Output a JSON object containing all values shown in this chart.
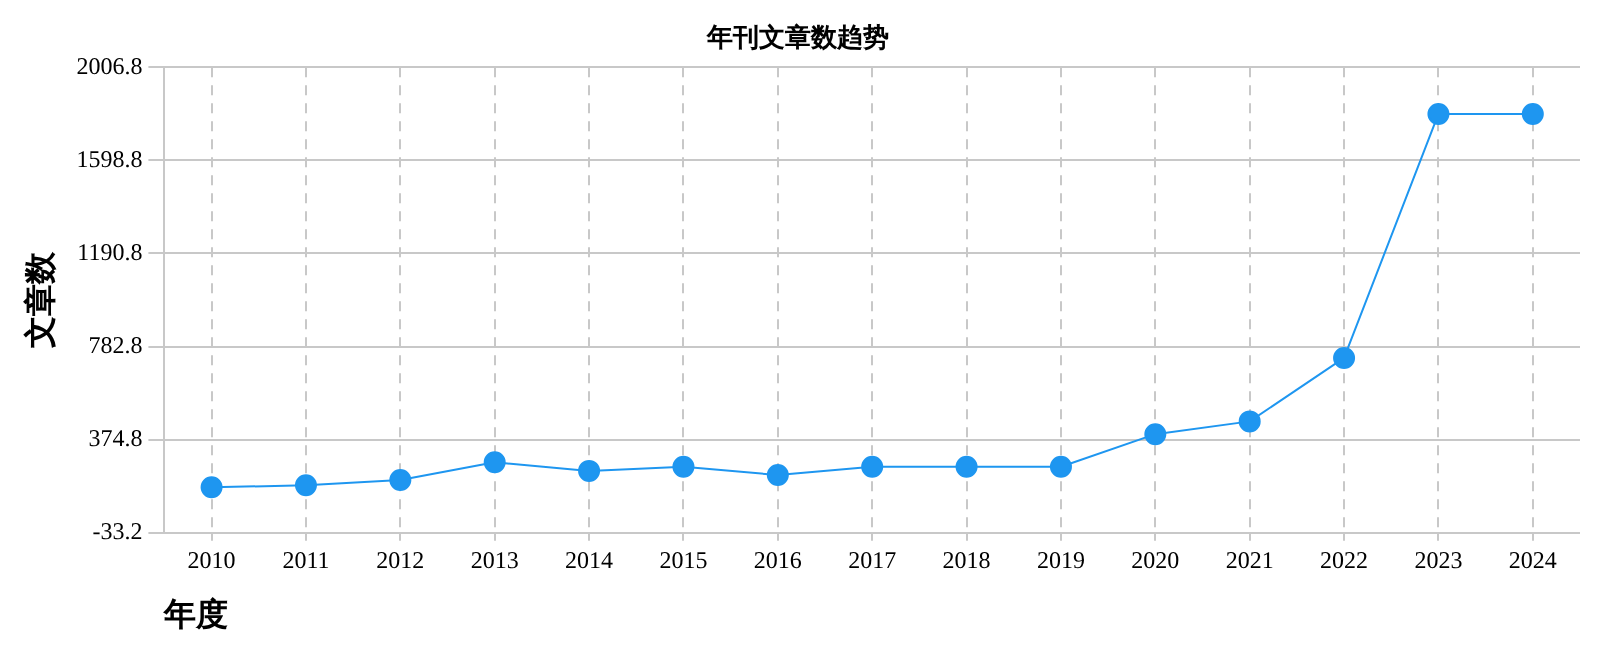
{
  "chart_data": {
    "type": "line",
    "title": "年刊文章数趋势",
    "xlabel": "年度",
    "ylabel": "文章数",
    "categories": [
      "2010",
      "2011",
      "2012",
      "2013",
      "2014",
      "2015",
      "2016",
      "2017",
      "2018",
      "2019",
      "2020",
      "2021",
      "2022",
      "2023",
      "2024"
    ],
    "series": [
      {
        "color": "#1e96f0",
        "values": [
          166,
          175,
          198,
          276,
          238,
          256,
          220,
          256,
          256,
          256,
          399,
          455,
          733,
          1802,
          1802
        ]
      }
    ],
    "ylim": [
      -33.2,
      2006.8
    ],
    "yticks": [
      -33.2,
      374.8,
      782.8,
      1190.8,
      1598.8,
      2006.8
    ],
    "grid": true,
    "marker": "circle",
    "line_style": "solid"
  }
}
